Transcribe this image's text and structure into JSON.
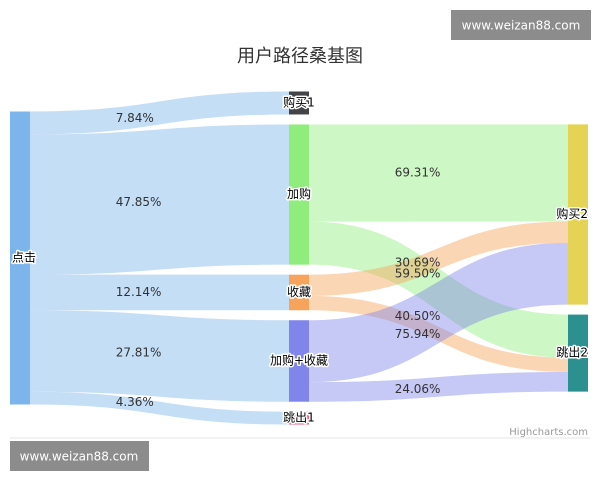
{
  "chart_data": {
    "type": "sankey",
    "title": "用户路径桑基图",
    "nodes": [
      {
        "name": "点击",
        "color": "#7cb5ec"
      },
      {
        "name": "购买1",
        "color": "#434348"
      },
      {
        "name": "加购",
        "color": "#90ed7d"
      },
      {
        "name": "收藏",
        "color": "#f7a35c"
      },
      {
        "name": "加购+收藏",
        "color": "#8085e9"
      },
      {
        "name": "跳出1",
        "color": "#f15c80"
      },
      {
        "name": "购买2",
        "color": "#e4d354"
      },
      {
        "name": "跳出2",
        "color": "#2b908f"
      }
    ],
    "links": [
      {
        "from": "点击",
        "to": "购买1",
        "value": 7.84,
        "value_label": "7.84%"
      },
      {
        "from": "点击",
        "to": "加购",
        "value": 47.85,
        "value_label": "47.85%"
      },
      {
        "from": "点击",
        "to": "收藏",
        "value": 12.14,
        "value_label": "12.14%"
      },
      {
        "from": "点击",
        "to": "加购+收藏",
        "value": 27.81,
        "value_label": "27.81%"
      },
      {
        "from": "点击",
        "to": "跳出1",
        "value": 4.36,
        "value_label": "4.36%"
      },
      {
        "from": "加购",
        "to": "购买2",
        "value": 69.31,
        "value_label": "69.31%"
      },
      {
        "from": "加购",
        "to": "跳出2",
        "value": 30.69,
        "value_label": "30.69%"
      },
      {
        "from": "收藏",
        "to": "购买2",
        "value": 59.5,
        "value_label": "59.50%"
      },
      {
        "from": "收藏",
        "to": "跳出2",
        "value": 40.5,
        "value_label": "40.50%"
      },
      {
        "from": "加购+收藏",
        "to": "购买2",
        "value": 75.94,
        "value_label": "75.94%"
      },
      {
        "from": "加购+收藏",
        "to": "跳出2",
        "value": 24.06,
        "value_label": "24.06%"
      }
    ],
    "credit": "Highcharts.com"
  },
  "watermarks": [
    "www.weizan88.com",
    "www.weizan88.com"
  ]
}
